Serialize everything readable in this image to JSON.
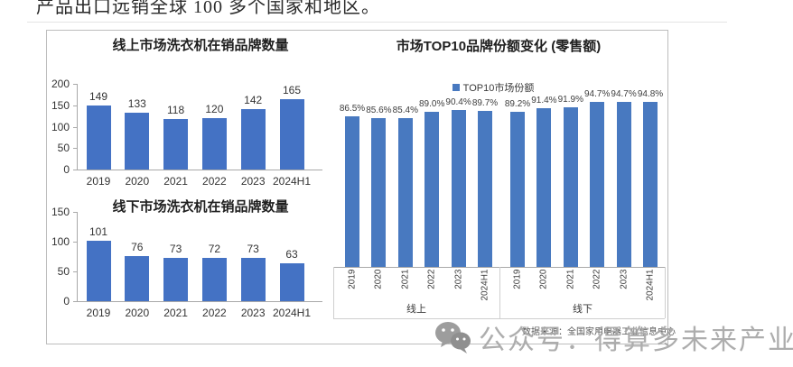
{
  "page": {
    "top_text": "产品出口远销全球 100 多个国家和地区。",
    "source_note": "数据来源：全国家用电器工业信息中心",
    "watermark_text": "公众号：得算多未来产业研究"
  },
  "colors": {
    "bar_left": "#4472c4",
    "bar_right": "#4879c0",
    "axis": "#a9a9a9",
    "watermark": "#a7a7a7"
  },
  "chart_data": [
    {
      "id": "online-brands",
      "type": "bar",
      "title": "线上市场洗衣机在销品牌数量",
      "categories": [
        "2019",
        "2020",
        "2021",
        "2022",
        "2023",
        "2024H1"
      ],
      "values": [
        149,
        133,
        118,
        120,
        142,
        165
      ],
      "ylim": [
        0,
        200
      ],
      "yticks": [
        0,
        50,
        100,
        150,
        200
      ],
      "data_labels": true,
      "grid": false,
      "legend_position": "none"
    },
    {
      "id": "offline-brands",
      "type": "bar",
      "title": "线下市场洗衣机在销品牌数量",
      "categories": [
        "2019",
        "2020",
        "2021",
        "2022",
        "2023",
        "2024H1"
      ],
      "values": [
        101,
        76,
        73,
        72,
        73,
        63
      ],
      "ylim": [
        0,
        150
      ],
      "yticks": [
        0,
        50,
        100,
        150
      ],
      "data_labels": true,
      "grid": false,
      "legend_position": "none"
    },
    {
      "id": "top10-share",
      "type": "bar",
      "title": "市场TOP10品牌份额变化 (零售额)",
      "legend": "TOP10市场份额",
      "legend_position": "top",
      "value_suffix": "%",
      "data_labels": true,
      "grid": false,
      "groups": [
        {
          "label": "线上",
          "categories": [
            "2019",
            "2020",
            "2021",
            "2022",
            "2023",
            "2024H1"
          ],
          "values": [
            86.5,
            85.6,
            85.4,
            89.0,
            90.4,
            89.7
          ]
        },
        {
          "label": "线下",
          "categories": [
            "2019",
            "2020",
            "2021",
            "2022",
            "2023",
            "2024H1"
          ],
          "values": [
            89.2,
            91.4,
            91.9,
            94.7,
            94.7,
            94.8
          ]
        }
      ]
    }
  ]
}
